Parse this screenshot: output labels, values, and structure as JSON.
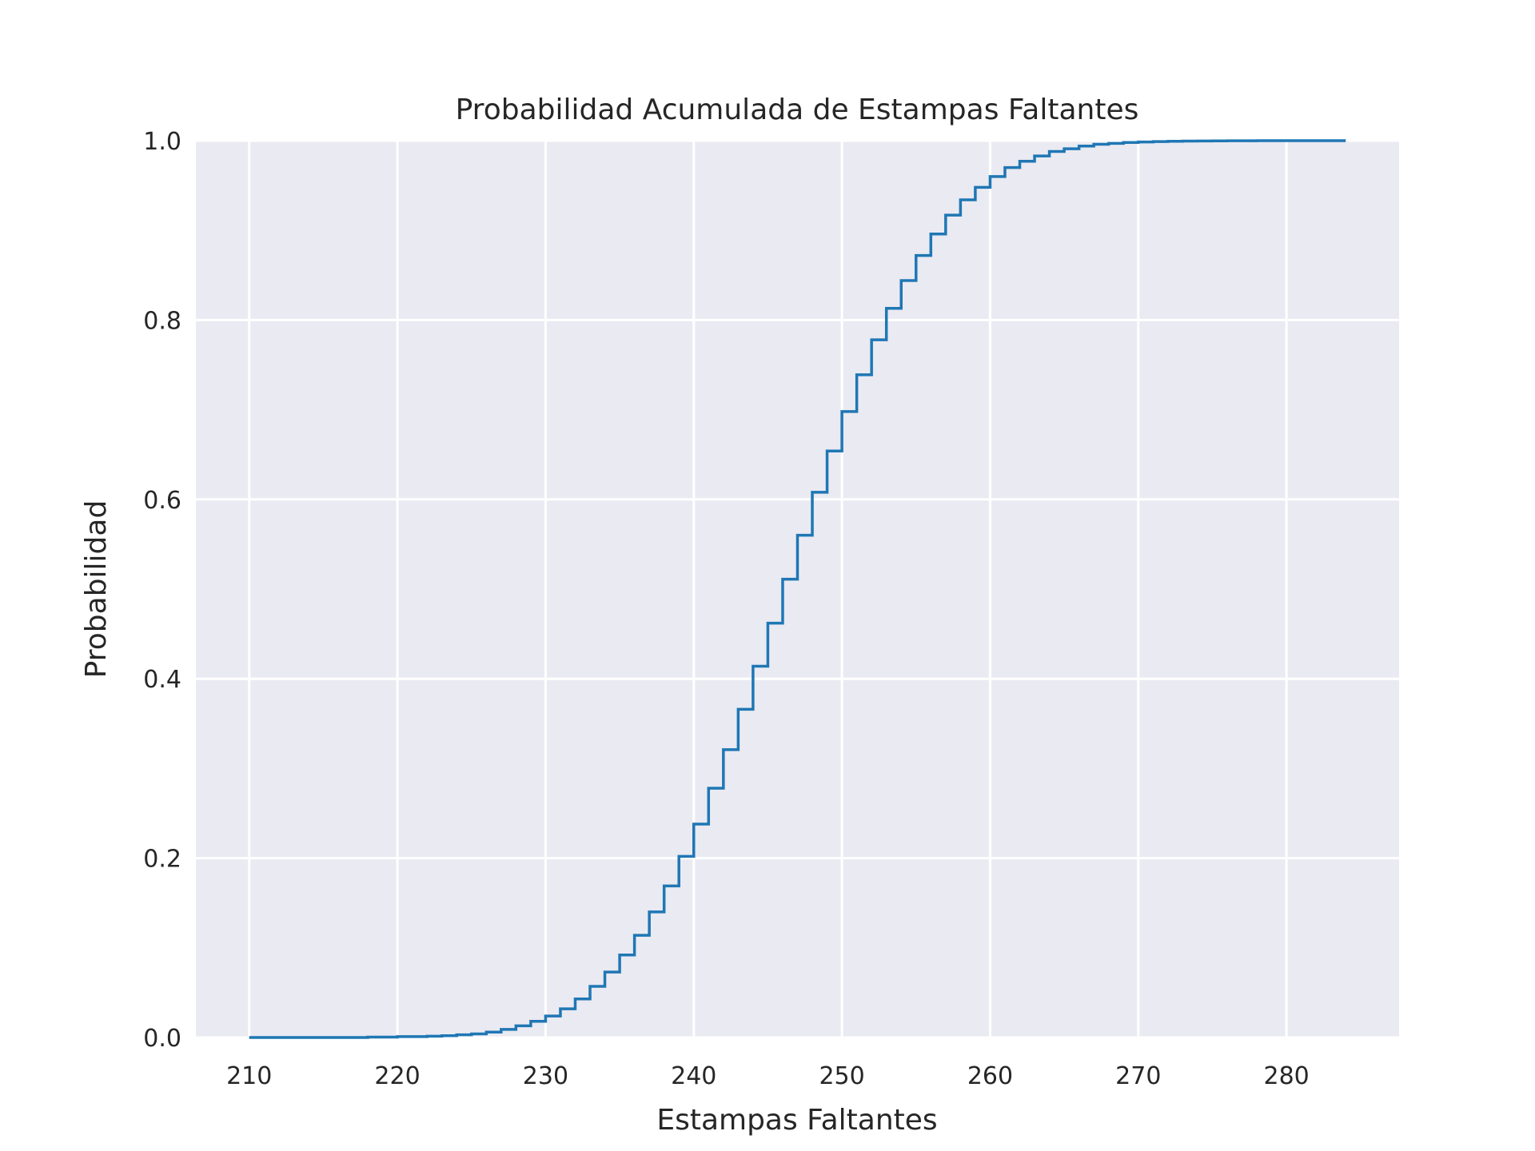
{
  "chart_data": {
    "type": "line",
    "title": "Probabilidad Acumulada de Estampas Faltantes",
    "xlabel": "Estampas Faltantes",
    "ylabel": "Probabilidad",
    "xlim": [
      206.4,
      287.6
    ],
    "ylim": [
      0.0,
      1.0
    ],
    "xticks": [
      210,
      220,
      230,
      240,
      250,
      260,
      270,
      280
    ],
    "yticks": [
      "0.0",
      "0.2",
      "0.4",
      "0.6",
      "0.8",
      "1.0"
    ],
    "grid": true,
    "step": true,
    "series_color": "#1f77b4",
    "background": "#eaeaf2",
    "x": [
      210,
      211,
      212,
      213,
      214,
      215,
      216,
      217,
      218,
      219,
      220,
      221,
      222,
      223,
      224,
      225,
      226,
      227,
      228,
      229,
      230,
      231,
      232,
      233,
      234,
      235,
      236,
      237,
      238,
      239,
      240,
      241,
      242,
      243,
      244,
      245,
      246,
      247,
      248,
      249,
      250,
      251,
      252,
      253,
      254,
      255,
      256,
      257,
      258,
      259,
      260,
      261,
      262,
      263,
      264,
      265,
      266,
      267,
      268,
      269,
      270,
      271,
      272,
      273,
      274,
      275,
      276,
      277,
      278,
      279,
      280,
      281,
      282,
      283,
      284
    ],
    "values": [
      0.0,
      0.0,
      0.0,
      0.0,
      0.0,
      0.0,
      0.0,
      0.0,
      0.0005,
      0.0005,
      0.001,
      0.001,
      0.0015,
      0.002,
      0.003,
      0.004,
      0.006,
      0.009,
      0.013,
      0.018,
      0.024,
      0.032,
      0.043,
      0.057,
      0.073,
      0.092,
      0.114,
      0.14,
      0.169,
      0.202,
      0.238,
      0.278,
      0.321,
      0.366,
      0.414,
      0.462,
      0.511,
      0.56,
      0.608,
      0.654,
      0.698,
      0.739,
      0.778,
      0.813,
      0.844,
      0.872,
      0.896,
      0.917,
      0.934,
      0.948,
      0.96,
      0.97,
      0.977,
      0.983,
      0.988,
      0.991,
      0.994,
      0.996,
      0.997,
      0.998,
      0.9985,
      0.999,
      0.9993,
      0.9995,
      0.9997,
      0.9998,
      0.9999,
      0.9999,
      1.0,
      1.0,
      1.0,
      1.0,
      1.0,
      1.0,
      1.0
    ]
  }
}
